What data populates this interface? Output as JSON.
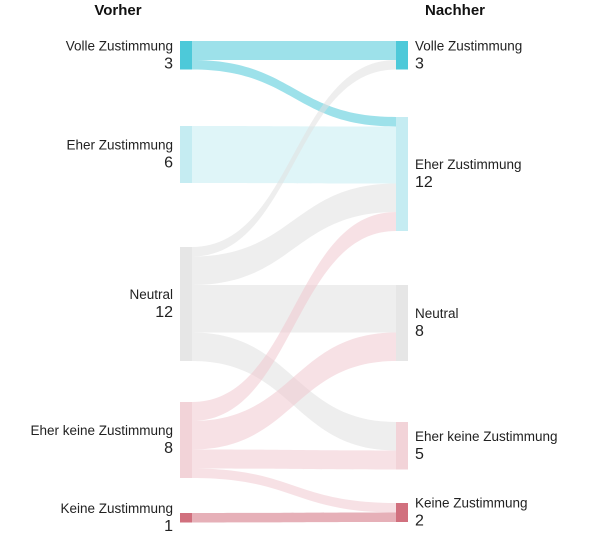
{
  "columns": {
    "left_title": "Vorher",
    "right_title": "Nachher"
  },
  "colors": {
    "volle": "#4dc9d9",
    "eher": "#c5ecf2",
    "neutral": "#e6e6e6",
    "eher_keine": "#f2d3d8",
    "keine": "#d1707e",
    "flow_volle": "#4dc9d9",
    "flow_eher": "#c5ecf2",
    "flow_neutral": "#e0e0e0",
    "flow_eher_keine": "#f0c8cf",
    "flow_keine": "#d1707e"
  },
  "chart_data": {
    "type": "sankey",
    "left_nodes": [
      {
        "id": "L_volle",
        "label": "Volle Zustimmung",
        "value": 3,
        "color_key": "volle"
      },
      {
        "id": "L_eher",
        "label": "Eher Zustimmung",
        "value": 6,
        "color_key": "eher"
      },
      {
        "id": "L_neutral",
        "label": "Neutral",
        "value": 12,
        "color_key": "neutral"
      },
      {
        "id": "L_eherkeine",
        "label": "Eher keine Zustimmung",
        "value": 8,
        "color_key": "eher_keine"
      },
      {
        "id": "L_keine",
        "label": "Keine Zustimmung",
        "value": 1,
        "color_key": "keine"
      }
    ],
    "right_nodes": [
      {
        "id": "R_volle",
        "label": "Volle Zustimmung",
        "value": 3,
        "color_key": "volle"
      },
      {
        "id": "R_eher",
        "label": "Eher Zustimmung",
        "value": 12,
        "color_key": "eher"
      },
      {
        "id": "R_neutral",
        "label": "Neutral",
        "value": 8,
        "color_key": "neutral"
      },
      {
        "id": "R_eherkeine",
        "label": "Eher keine Zustimmung",
        "value": 5,
        "color_key": "eher_keine"
      },
      {
        "id": "R_keine",
        "label": "Keine Zustimmung",
        "value": 2,
        "color_key": "keine"
      }
    ],
    "links": [
      {
        "source": "L_volle",
        "target": "R_volle",
        "value": 2,
        "color_key": "flow_volle"
      },
      {
        "source": "L_volle",
        "target": "R_eher",
        "value": 1,
        "color_key": "flow_volle"
      },
      {
        "source": "L_eher",
        "target": "R_eher",
        "value": 6,
        "color_key": "flow_eher"
      },
      {
        "source": "L_neutral",
        "target": "R_volle",
        "value": 1,
        "color_key": "flow_neutral"
      },
      {
        "source": "L_neutral",
        "target": "R_eher",
        "value": 3,
        "color_key": "flow_neutral"
      },
      {
        "source": "L_neutral",
        "target": "R_neutral",
        "value": 5,
        "color_key": "flow_neutral"
      },
      {
        "source": "L_neutral",
        "target": "R_eherkeine",
        "value": 3,
        "color_key": "flow_neutral"
      },
      {
        "source": "L_eherkeine",
        "target": "R_eher",
        "value": 2,
        "color_key": "flow_eher_keine"
      },
      {
        "source": "L_eherkeine",
        "target": "R_neutral",
        "value": 3,
        "color_key": "flow_eher_keine"
      },
      {
        "source": "L_eherkeine",
        "target": "R_eherkeine",
        "value": 2,
        "color_key": "flow_eher_keine"
      },
      {
        "source": "L_eherkeine",
        "target": "R_keine",
        "value": 1,
        "color_key": "flow_eher_keine"
      },
      {
        "source": "L_keine",
        "target": "R_keine",
        "value": 1,
        "color_key": "flow_keine"
      }
    ]
  }
}
